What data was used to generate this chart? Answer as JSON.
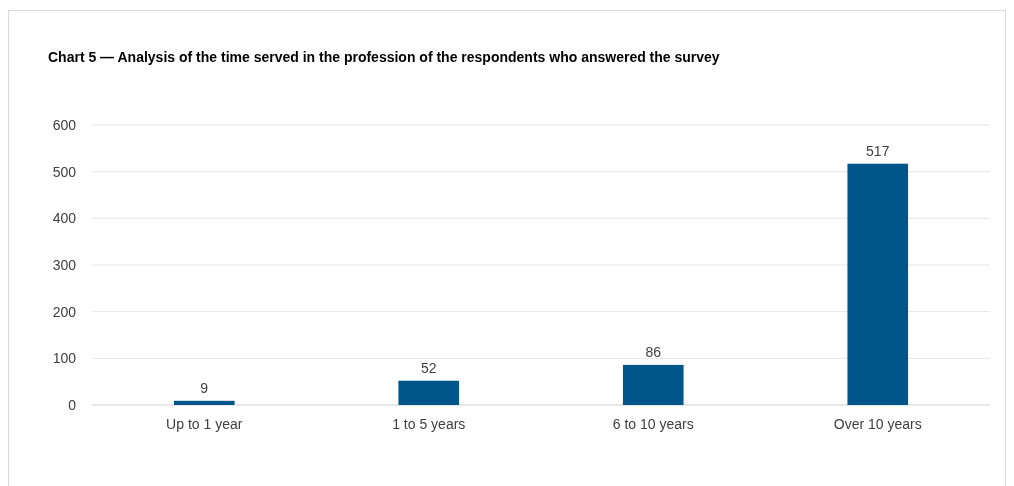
{
  "chart_data": {
    "type": "bar",
    "title": "Chart 5 — Analysis of the time served in the profession of the respondents who answered the survey",
    "categories": [
      "Up to 1 year",
      "1 to 5 years",
      "6 to 10 years",
      "Over 10 years"
    ],
    "values": [
      9,
      52,
      86,
      517
    ],
    "color": "#00558a",
    "ylim": [
      0,
      600
    ],
    "yticks": [
      0,
      100,
      200,
      300,
      400,
      500,
      600
    ],
    "grid": "y",
    "data_labels": true
  }
}
